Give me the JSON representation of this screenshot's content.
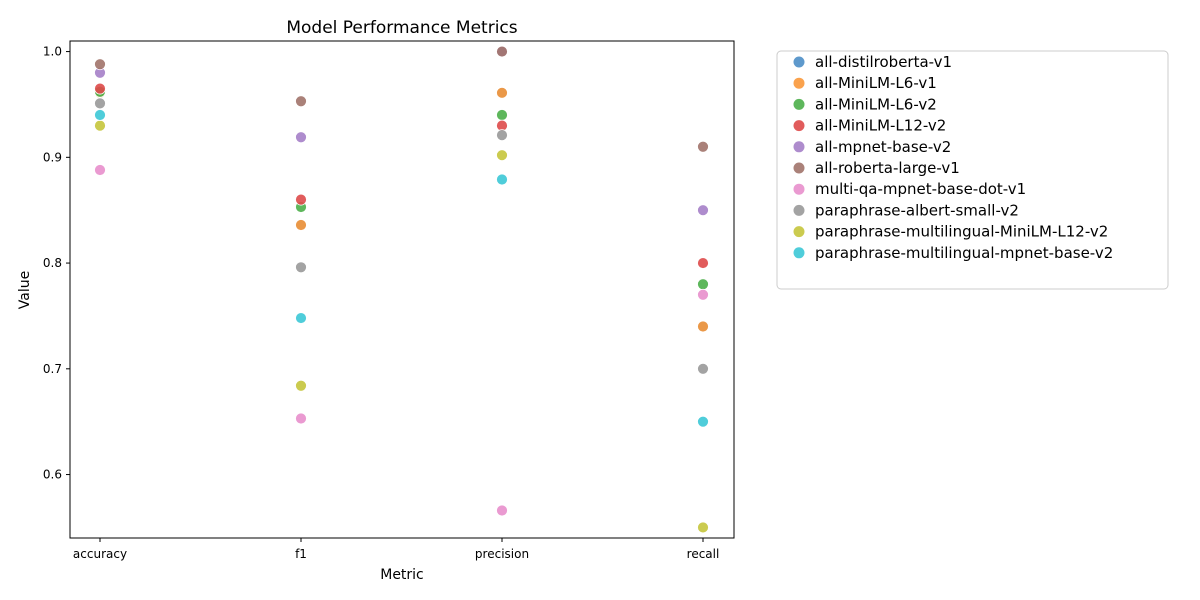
{
  "chart_data": {
    "type": "scatter",
    "title": "Model Performance Metrics",
    "xlabel": "Metric",
    "ylabel": "Value",
    "categories": [
      "accuracy",
      "f1",
      "precision",
      "recall"
    ],
    "ylim": [
      0.54,
      1.01
    ],
    "yticks": [
      "0.6",
      "0.7",
      "0.8",
      "0.9",
      "1.0"
    ],
    "grid": false,
    "legend_position": "outside-right",
    "series": [
      {
        "name": "all-distilroberta-v1",
        "color": "#4c8ec7",
        "values": [
          0.961,
          0.836,
          0.961,
          0.74
        ]
      },
      {
        "name": "all-MiniLM-L6-v1",
        "color": "#f9983a",
        "values": [
          0.961,
          0.836,
          0.961,
          0.74
        ]
      },
      {
        "name": "all-MiniLM-L6-v2",
        "color": "#4daf4a",
        "values": [
          0.962,
          0.853,
          0.94,
          0.78
        ]
      },
      {
        "name": "all-MiniLM-L12-v2",
        "color": "#de4a4a",
        "values": [
          0.965,
          0.86,
          0.93,
          0.8
        ]
      },
      {
        "name": "all-mpnet-base-v2",
        "color": "#a57fc8",
        "values": [
          0.98,
          0.919,
          1.0,
          0.85
        ]
      },
      {
        "name": "all-roberta-large-v1",
        "color": "#a1736a",
        "values": [
          0.988,
          0.953,
          1.0,
          0.91
        ]
      },
      {
        "name": "multi-qa-mpnet-base-dot-v1",
        "color": "#e88fcc",
        "values": [
          0.888,
          0.653,
          0.566,
          0.77
        ]
      },
      {
        "name": "paraphrase-albert-small-v2",
        "color": "#999999",
        "values": [
          0.951,
          0.796,
          0.921,
          0.7
        ]
      },
      {
        "name": "paraphrase-multilingual-MiniLM-L12-v2",
        "color": "#c5c53c",
        "values": [
          0.93,
          0.684,
          0.902,
          0.55
        ]
      },
      {
        "name": "paraphrase-multilingual-mpnet-base-v2",
        "color": "#3cc8d6",
        "values": [
          0.94,
          0.748,
          0.879,
          0.65
        ]
      }
    ]
  }
}
